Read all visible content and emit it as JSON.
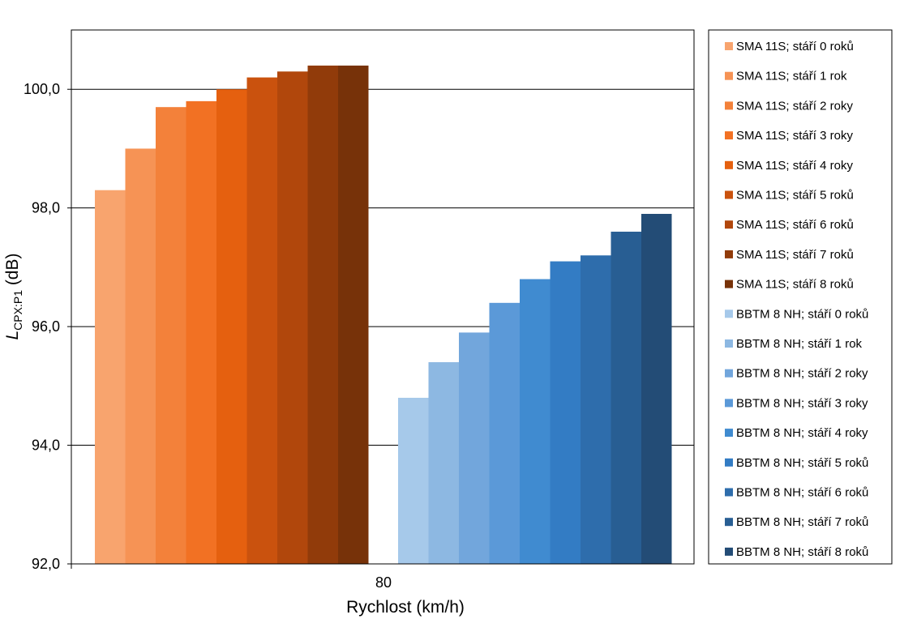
{
  "chart_data": {
    "type": "bar",
    "categories": [
      "80"
    ],
    "xlabel": "Rychlost (km/h)",
    "ylabel": {
      "main": "L",
      "subscript": "CPX:P1",
      "unit": " (dB)"
    },
    "ylim": [
      92.0,
      101.0
    ],
    "yticks": [
      "92,0",
      "94,0",
      "96,0",
      "98,0",
      "100,0"
    ],
    "ytick_values": [
      92,
      94,
      96,
      98,
      100
    ],
    "grid": true,
    "legend_position": "right",
    "series": [
      {
        "name": "SMA 11S; stáří 0 roků",
        "color": "#F8A46E",
        "values": [
          98.3
        ]
      },
      {
        "name": "SMA 11S; stáří 1 rok",
        "color": "#F69355",
        "values": [
          99.0
        ]
      },
      {
        "name": "SMA 11S; stáří 2 roky",
        "color": "#F3813A",
        "values": [
          99.7
        ]
      },
      {
        "name": "SMA 11S; stáří 3 roky",
        "color": "#F27123",
        "values": [
          99.8
        ]
      },
      {
        "name": "SMA 11S; stáří 4 roky",
        "color": "#E5600F",
        "values": [
          100.0
        ]
      },
      {
        "name": "SMA 11S; stáří 5 roků",
        "color": "#CA520E",
        "values": [
          100.2
        ]
      },
      {
        "name": "SMA 11S; stáří 6 roků",
        "color": "#B1470C",
        "values": [
          100.3
        ]
      },
      {
        "name": "SMA 11S; stáří 7 roků",
        "color": "#913B0A",
        "values": [
          100.4
        ]
      },
      {
        "name": "SMA 11S; stáří 8 roků",
        "color": "#773209",
        "values": [
          100.4
        ]
      },
      {
        "name": "BBTM 8 NH; stáří 0 roků",
        "color": "#A6C9EA",
        "values": [
          94.8
        ]
      },
      {
        "name": "BBTM 8 NH; stáří 1 rok",
        "color": "#8DB8E2",
        "values": [
          95.4
        ]
      },
      {
        "name": "BBTM 8 NH; stáří 2 roky",
        "color": "#72A6DC",
        "values": [
          95.9
        ]
      },
      {
        "name": "BBTM 8 NH; stáří 3 roky",
        "color": "#5B99D8",
        "values": [
          96.4
        ]
      },
      {
        "name": "BBTM 8 NH; stáří 4 roky",
        "color": "#408BD0",
        "values": [
          96.8
        ]
      },
      {
        "name": "BBTM 8 NH; stáří 5 roků",
        "color": "#337CC4",
        "values": [
          97.1
        ]
      },
      {
        "name": "BBTM 8 NH; stáří 6 roků",
        "color": "#2E6DAC",
        "values": [
          97.2
        ]
      },
      {
        "name": "BBTM 8 NH; stáří 7 roků",
        "color": "#285E93",
        "values": [
          97.6
        ]
      },
      {
        "name": "BBTM 8 NH; stáří 8 roků",
        "color": "#234C76",
        "values": [
          97.9
        ]
      }
    ]
  }
}
